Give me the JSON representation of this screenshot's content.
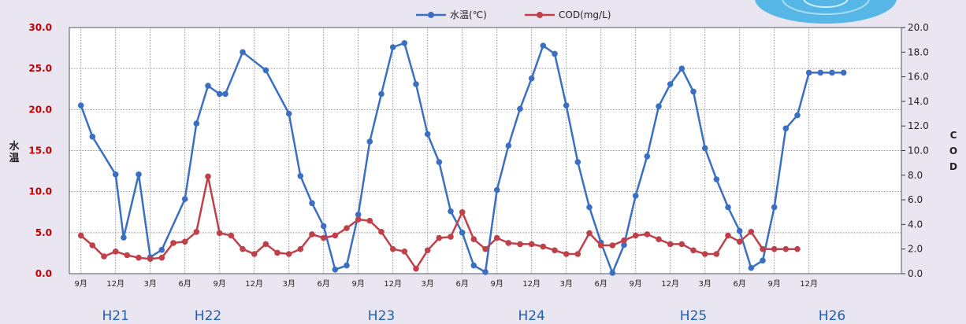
{
  "chart_data": {
    "type": "line",
    "title": "",
    "legend": [
      {
        "name": "水温(℃)",
        "color": "#3b6fc4"
      },
      {
        "name": "COD(mg/L)",
        "color": "#c0404a"
      }
    ],
    "legend_position": "top-center",
    "ylabel_left": "水温",
    "ylabel_right": "COD",
    "ylim_left": [
      0,
      30
    ],
    "ylim_right": [
      0,
      20
    ],
    "yticks_left": [
      "0.0",
      "5.0",
      "10.0",
      "15.0",
      "20.0",
      "25.0",
      "30.0"
    ],
    "yticks_right": [
      "0.0",
      "2.0",
      "4.0",
      "6.0",
      "8.0",
      "10.0",
      "12.0",
      "14.0",
      "16.0",
      "18.0",
      "20.0"
    ],
    "x_tick_labels": [
      "9月",
      "12月",
      "3月",
      "6月",
      "9月",
      "12月",
      "3月",
      "6月",
      "9月",
      "12月",
      "3月",
      "6月",
      "9月",
      "12月",
      "3月",
      "6月",
      "9月",
      "12月",
      "3月",
      "6月",
      "9月",
      "12月"
    ],
    "x_tick_start_month": 1,
    "fiscal_years": [
      {
        "label": "H21",
        "center_month": 4
      },
      {
        "label": "H22",
        "center_month": 12
      },
      {
        "label": "H23",
        "center_month": 27
      },
      {
        "label": "H24",
        "center_month": 40
      },
      {
        "label": "H25",
        "center_month": 54
      },
      {
        "label": "H26",
        "center_month": 66
      }
    ],
    "grid": true,
    "series": [
      {
        "name": "水温(℃)",
        "axis": "left",
        "color": "#3b6fc4",
        "x": [
          1,
          2,
          4,
          4.7,
          6,
          7,
          8,
          10,
          11,
          12,
          13,
          13.5,
          15,
          17,
          19,
          20,
          21,
          22,
          23,
          24,
          25,
          26,
          27,
          28,
          29,
          30,
          31,
          32,
          33,
          34,
          35,
          36,
          37,
          38,
          39,
          40,
          41,
          42,
          43,
          44,
          45,
          46,
          47,
          48,
          49,
          50,
          51,
          52,
          53,
          54,
          55,
          56,
          57,
          58,
          59,
          60,
          61,
          62,
          63,
          64,
          65,
          66,
          67
        ],
        "values": [
          20.5,
          16.7,
          12.1,
          4.4,
          12.1,
          2.0,
          2.9,
          9.1,
          18.3,
          22.9,
          21.9,
          21.9,
          27.0,
          24.8,
          19.5,
          11.9,
          8.6,
          5.8,
          0.5,
          1.0,
          7.2,
          16.1,
          21.9,
          27.6,
          28.1,
          23.1,
          17.0,
          13.6,
          7.6,
          5.0,
          1.0,
          0.2,
          10.2,
          15.6,
          20.1,
          23.8,
          27.8,
          26.8,
          20.5,
          13.6,
          8.1,
          3.8,
          0.1,
          3.5,
          9.5,
          14.3,
          20.4,
          23.1,
          25.0,
          22.2,
          15.3,
          11.5,
          8.1,
          5.2,
          0.7,
          1.6,
          8.1,
          17.7,
          19.3,
          24.5,
          24.5,
          24.5,
          24.5
        ]
      },
      {
        "name": "COD(mg/L)",
        "axis": "right",
        "color": "#c0404a",
        "x": [
          1,
          2,
          3,
          4,
          5,
          6,
          7,
          8,
          9,
          10,
          11,
          12,
          13,
          14,
          15,
          16,
          17,
          18,
          19,
          20,
          21,
          22,
          23,
          24,
          25,
          26,
          27,
          28,
          29,
          30,
          31,
          32,
          33,
          34,
          35,
          36,
          37,
          38,
          39,
          40,
          41,
          42,
          43,
          44,
          45,
          46,
          47,
          48,
          49,
          50,
          51,
          52,
          53,
          54,
          55,
          56,
          57,
          58,
          59,
          60,
          61,
          62,
          63
        ],
        "values": [
          3.1,
          2.3,
          1.4,
          1.8,
          1.5,
          1.3,
          1.2,
          1.3,
          2.5,
          2.6,
          3.4,
          7.9,
          3.3,
          3.1,
          2.0,
          1.6,
          2.4,
          1.7,
          1.6,
          2.0,
          3.2,
          2.9,
          3.1,
          3.7,
          4.4,
          4.3,
          3.4,
          2.0,
          1.8,
          0.4,
          1.9,
          2.9,
          3.0,
          5.0,
          2.8,
          2.0,
          2.9,
          2.5,
          2.4,
          2.4,
          2.2,
          1.9,
          1.6,
          1.6,
          3.3,
          2.3,
          2.3,
          2.7,
          3.1,
          3.2,
          2.8,
          2.4,
          2.4,
          1.9,
          1.6,
          1.6,
          3.1,
          2.6,
          3.4,
          2.0,
          2.0,
          2.0,
          2.0
        ]
      }
    ]
  }
}
